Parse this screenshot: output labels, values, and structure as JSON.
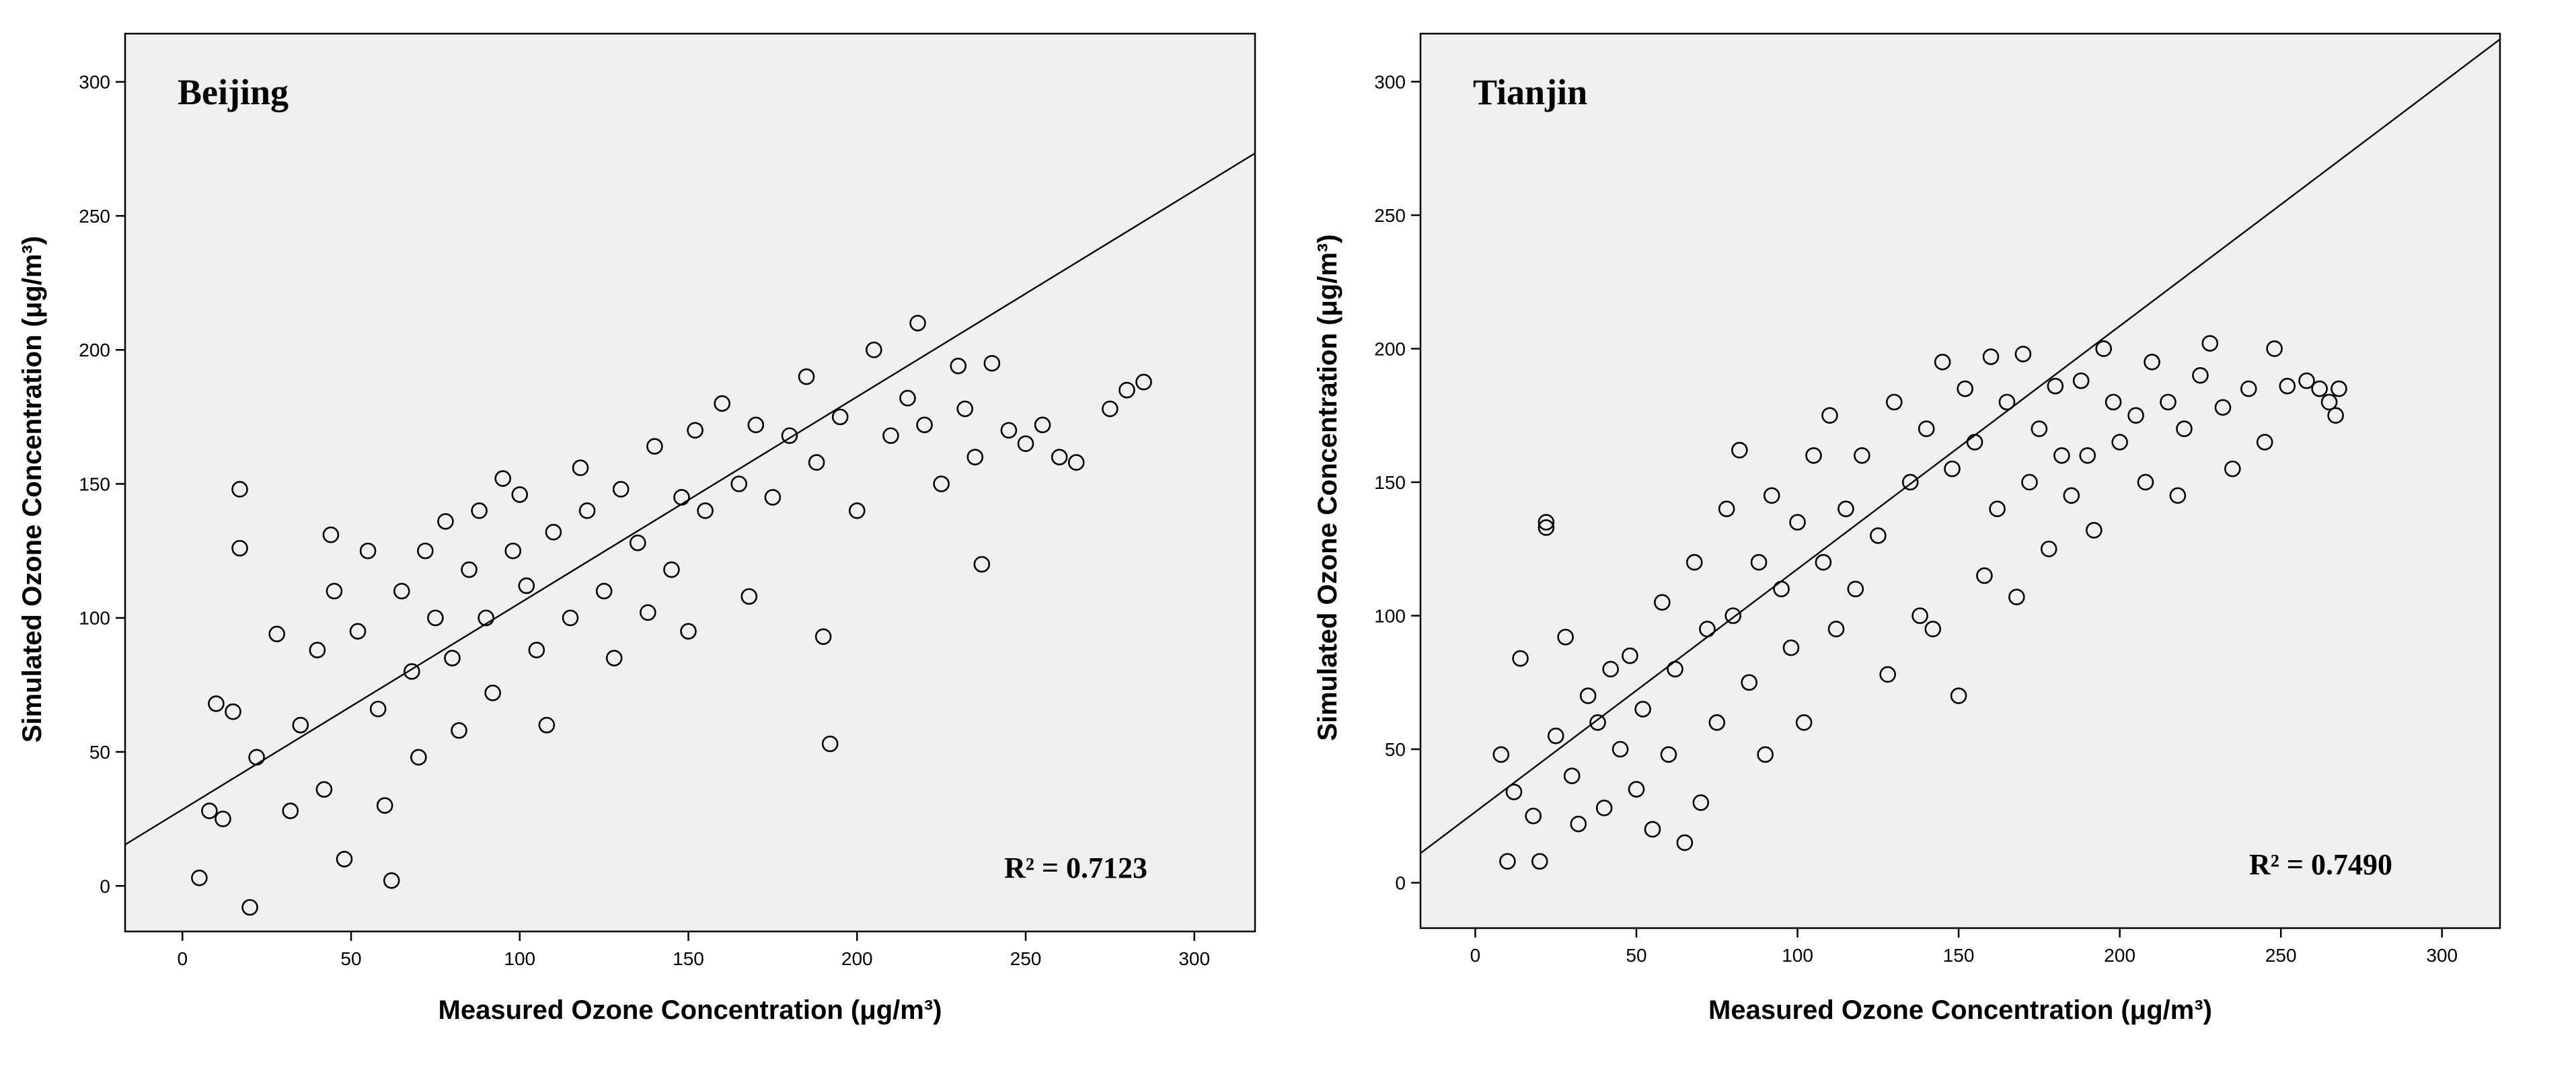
{
  "chart_data": [
    {
      "type": "scatter",
      "title": "Beijing",
      "xlabel": "Measured Ozone Concentration (μg/m³)",
      "ylabel": "Simulated Ozone Concentration (μg/m³)",
      "xlim": [
        -17,
        318
      ],
      "ylim": [
        -17,
        318
      ],
      "xticks": [
        "0",
        "50",
        "100",
        "150",
        "200",
        "250",
        "300"
      ],
      "yticks": [
        "0",
        "50",
        "100",
        "150",
        "200",
        "250",
        "300"
      ],
      "r2_label": "R² = 0.7123",
      "fit_line": {
        "slope": 0.77,
        "intercept": 28.5
      },
      "points": [
        [
          5,
          3
        ],
        [
          8,
          28
        ],
        [
          10,
          68
        ],
        [
          12,
          25
        ],
        [
          15,
          65
        ],
        [
          17,
          148
        ],
        [
          17,
          126
        ],
        [
          20,
          -8
        ],
        [
          22,
          48
        ],
        [
          28,
          94
        ],
        [
          32,
          28
        ],
        [
          35,
          60
        ],
        [
          40,
          88
        ],
        [
          42,
          36
        ],
        [
          45,
          110
        ],
        [
          44,
          131
        ],
        [
          48,
          10
        ],
        [
          52,
          95
        ],
        [
          55,
          125
        ],
        [
          58,
          66
        ],
        [
          60,
          30
        ],
        [
          62,
          2
        ],
        [
          65,
          110
        ],
        [
          68,
          80
        ],
        [
          70,
          48
        ],
        [
          72,
          125
        ],
        [
          75,
          100
        ],
        [
          78,
          136
        ],
        [
          80,
          85
        ],
        [
          82,
          58
        ],
        [
          85,
          118
        ],
        [
          88,
          140
        ],
        [
          90,
          100
        ],
        [
          92,
          72
        ],
        [
          95,
          152
        ],
        [
          98,
          125
        ],
        [
          100,
          146
        ],
        [
          102,
          112
        ],
        [
          105,
          88
        ],
        [
          108,
          60
        ],
        [
          110,
          132
        ],
        [
          115,
          100
        ],
        [
          118,
          156
        ],
        [
          120,
          140
        ],
        [
          125,
          110
        ],
        [
          128,
          85
        ],
        [
          130,
          148
        ],
        [
          135,
          128
        ],
        [
          138,
          102
        ],
        [
          140,
          164
        ],
        [
          145,
          118
        ],
        [
          148,
          145
        ],
        [
          150,
          95
        ],
        [
          152,
          170
        ],
        [
          155,
          140
        ],
        [
          160,
          180
        ],
        [
          165,
          150
        ],
        [
          168,
          108
        ],
        [
          170,
          172
        ],
        [
          175,
          145
        ],
        [
          180,
          168
        ],
        [
          185,
          190
        ],
        [
          188,
          158
        ],
        [
          190,
          93
        ],
        [
          192,
          53
        ],
        [
          195,
          175
        ],
        [
          200,
          140
        ],
        [
          205,
          200
        ],
        [
          210,
          168
        ],
        [
          215,
          182
        ],
        [
          218,
          210
        ],
        [
          220,
          172
        ],
        [
          225,
          150
        ],
        [
          230,
          194
        ],
        [
          232,
          178
        ],
        [
          235,
          160
        ],
        [
          237,
          120
        ],
        [
          240,
          195
        ],
        [
          245,
          170
        ],
        [
          250,
          165
        ],
        [
          255,
          172
        ],
        [
          260,
          160
        ],
        [
          265,
          158
        ],
        [
          275,
          178
        ],
        [
          280,
          185
        ],
        [
          285,
          188
        ]
      ]
    },
    {
      "type": "scatter",
      "title": "Tianjin",
      "xlabel": "Measured Ozone Concentration (μg/m³)",
      "ylabel": "Simulated Ozone Concentration (μg/m³)",
      "xlim": [
        -17,
        318
      ],
      "ylim": [
        -17,
        318
      ],
      "xticks": [
        "0",
        "50",
        "100",
        "150",
        "200",
        "250",
        "300"
      ],
      "yticks": [
        "0",
        "50",
        "100",
        "150",
        "200",
        "250",
        "300"
      ],
      "r2_label": "R² = 0.7490",
      "fit_line": {
        "slope": 0.91,
        "intercept": 26.5
      },
      "points": [
        [
          8,
          48
        ],
        [
          10,
          8
        ],
        [
          12,
          34
        ],
        [
          14,
          84
        ],
        [
          18,
          25
        ],
        [
          20,
          8
        ],
        [
          22,
          135
        ],
        [
          22,
          133
        ],
        [
          25,
          55
        ],
        [
          28,
          92
        ],
        [
          30,
          40
        ],
        [
          32,
          22
        ],
        [
          35,
          70
        ],
        [
          38,
          60
        ],
        [
          40,
          28
        ],
        [
          42,
          80
        ],
        [
          45,
          50
        ],
        [
          48,
          85
        ],
        [
          50,
          35
        ],
        [
          52,
          65
        ],
        [
          55,
          20
        ],
        [
          58,
          105
        ],
        [
          60,
          48
        ],
        [
          62,
          80
        ],
        [
          65,
          15
        ],
        [
          68,
          120
        ],
        [
          70,
          30
        ],
        [
          72,
          95
        ],
        [
          75,
          60
        ],
        [
          78,
          140
        ],
        [
          80,
          100
        ],
        [
          82,
          162
        ],
        [
          85,
          75
        ],
        [
          88,
          120
        ],
        [
          90,
          48
        ],
        [
          92,
          145
        ],
        [
          95,
          110
        ],
        [
          98,
          88
        ],
        [
          100,
          135
        ],
        [
          102,
          60
        ],
        [
          105,
          160
        ],
        [
          108,
          120
        ],
        [
          110,
          175
        ],
        [
          112,
          95
        ],
        [
          115,
          140
        ],
        [
          118,
          110
        ],
        [
          120,
          160
        ],
        [
          125,
          130
        ],
        [
          128,
          78
        ],
        [
          130,
          180
        ],
        [
          135,
          150
        ],
        [
          138,
          100
        ],
        [
          140,
          170
        ],
        [
          142,
          95
        ],
        [
          145,
          195
        ],
        [
          148,
          155
        ],
        [
          150,
          70
        ],
        [
          152,
          185
        ],
        [
          155,
          165
        ],
        [
          158,
          115
        ],
        [
          160,
          197
        ],
        [
          162,
          140
        ],
        [
          165,
          180
        ],
        [
          168,
          107
        ],
        [
          170,
          198
        ],
        [
          172,
          150
        ],
        [
          175,
          170
        ],
        [
          178,
          125
        ],
        [
          180,
          186
        ],
        [
          182,
          160
        ],
        [
          185,
          145
        ],
        [
          188,
          188
        ],
        [
          190,
          160
        ],
        [
          192,
          132
        ],
        [
          195,
          200
        ],
        [
          198,
          180
        ],
        [
          200,
          165
        ],
        [
          205,
          175
        ],
        [
          208,
          150
        ],
        [
          210,
          195
        ],
        [
          215,
          180
        ],
        [
          218,
          145
        ],
        [
          220,
          170
        ],
        [
          225,
          190
        ],
        [
          228,
          202
        ],
        [
          232,
          178
        ],
        [
          235,
          155
        ],
        [
          240,
          185
        ],
        [
          245,
          165
        ],
        [
          248,
          200
        ],
        [
          252,
          186
        ],
        [
          258,
          188
        ],
        [
          262,
          185
        ],
        [
          265,
          180
        ],
        [
          267,
          175
        ],
        [
          268,
          185
        ]
      ]
    }
  ]
}
